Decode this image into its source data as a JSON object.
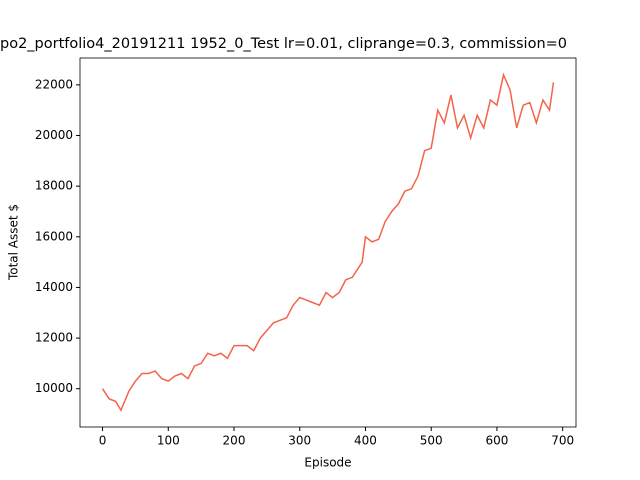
{
  "chart_data": {
    "type": "line",
    "title": "po2_portfolio4_20191211 1952_0_Test lr=0.01, cliprange=0.3, commission=0",
    "x_label": "Episode",
    "y_label": "Total Asset $",
    "x": [
      0,
      10,
      20,
      28,
      40,
      50,
      60,
      70,
      80,
      90,
      100,
      110,
      120,
      130,
      140,
      150,
      160,
      170,
      180,
      190,
      200,
      210,
      220,
      230,
      240,
      250,
      260,
      270,
      280,
      290,
      300,
      310,
      320,
      330,
      340,
      350,
      360,
      370,
      380,
      390,
      395,
      400,
      410,
      420,
      430,
      440,
      450,
      460,
      470,
      480,
      490,
      500,
      510,
      520,
      530,
      540,
      550,
      560,
      570,
      580,
      590,
      600,
      610,
      620,
      630,
      640,
      650,
      660,
      670,
      680,
      686
    ],
    "series": [
      {
        "name": "Total Asset",
        "color": "#f4634b",
        "values": [
          10000,
          9600,
          9500,
          9150,
          9900,
          10300,
          10600,
          10600,
          10700,
          10400,
          10300,
          10500,
          10600,
          10400,
          10900,
          11000,
          11400,
          11300,
          11400,
          11200,
          11700,
          11700,
          11700,
          11500,
          12000,
          12300,
          12600,
          12700,
          12800,
          13300,
          13600,
          13500,
          13400,
          13300,
          13800,
          13600,
          13800,
          14300,
          14400,
          14800,
          15000,
          16000,
          15800,
          15900,
          16600,
          17000,
          17300,
          17800,
          17900,
          18400,
          19400,
          19500,
          21000,
          20500,
          21600,
          20300,
          20800,
          19900,
          20800,
          20300,
          21400,
          21200,
          22400,
          21800,
          20300,
          21200,
          21300,
          20500,
          21400,
          21000,
          22100
        ]
      }
    ],
    "xlim": [
      -34.3,
      720.3
    ],
    "ylim": [
      8488,
      23062
    ],
    "xticks": [
      0,
      100,
      200,
      300,
      400,
      500,
      600,
      700
    ],
    "yticks": [
      10000,
      12000,
      14000,
      16000,
      18000,
      20000,
      22000
    ]
  }
}
